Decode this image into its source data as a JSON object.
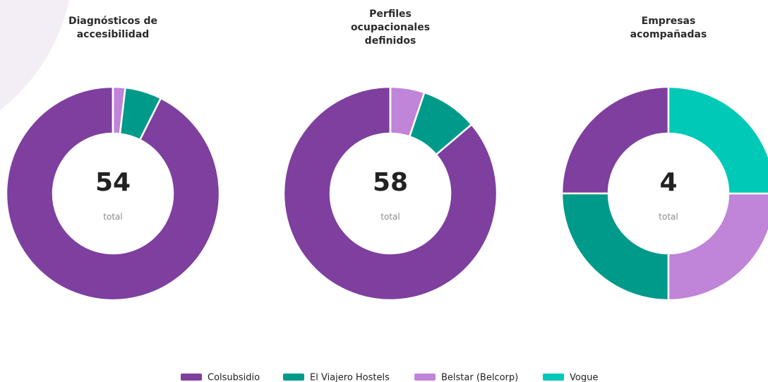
{
  "legend": {
    "names": [
      "Colsubsidio",
      "El Viajero Hostels",
      "Belstar (Belcorp)",
      "Vogue"
    ],
    "colors": [
      "#7e3f9e",
      "#009a8a",
      "#c084d8",
      "#00c9b7"
    ]
  },
  "chart_data": [
    {
      "type": "donut",
      "title": "Diagnósticos de accesibilidad",
      "values": [
        50,
        3,
        1,
        0
      ],
      "total": 54,
      "total_label": "total"
    },
    {
      "type": "donut",
      "title": "Perfiles ocupacionales definidos",
      "values": [
        50,
        5,
        3,
        0
      ],
      "total": 58,
      "total_label": "total"
    },
    {
      "type": "donut",
      "title": "Empresas acompañadas",
      "values": [
        1,
        1,
        1,
        1
      ],
      "total": 4,
      "total_label": "total"
    }
  ]
}
